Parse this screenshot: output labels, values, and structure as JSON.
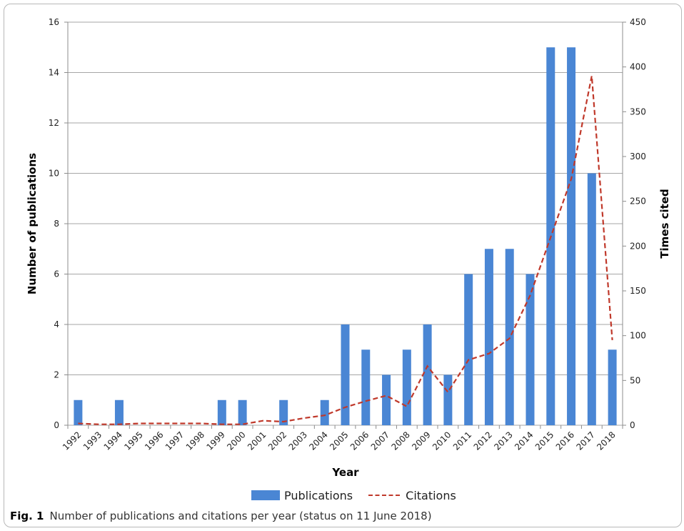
{
  "chart_data": {
    "type": "bar",
    "categories": [
      "1992",
      "1993",
      "1994",
      "1995",
      "1996",
      "1997",
      "1998",
      "1999",
      "2000",
      "2001",
      "2002",
      "2003",
      "2004",
      "2005",
      "2006",
      "2007",
      "2008",
      "2009",
      "2010",
      "2011",
      "2012",
      "2013",
      "2014",
      "2015",
      "2016",
      "2017",
      "2018"
    ],
    "series": [
      {
        "name": "Publications",
        "type": "bar",
        "axis": "left",
        "color": "#4a86d4",
        "values": [
          1,
          0,
          1,
          0,
          0,
          0,
          0,
          1,
          1,
          0,
          1,
          0,
          1,
          4,
          3,
          2,
          3,
          4,
          2,
          6,
          7,
          7,
          6,
          15,
          15,
          10,
          3
        ]
      },
      {
        "name": "Citations",
        "type": "line",
        "style": "dashed",
        "axis": "right",
        "color": "#c0392b",
        "values": [
          2,
          1,
          1,
          2,
          2,
          2,
          2,
          1,
          1,
          5,
          4,
          8,
          11,
          20,
          27,
          33,
          21,
          66,
          37,
          73,
          80,
          97,
          145,
          210,
          275,
          390,
          95
        ]
      }
    ],
    "xlabel": "Year",
    "ylabel": "Number of publications",
    "y2label": "Times cited",
    "ylim": [
      0,
      16
    ],
    "y2lim": [
      0,
      450
    ],
    "yticks": [
      "0",
      "2",
      "4",
      "6",
      "8",
      "10",
      "12",
      "14",
      "16"
    ],
    "y2ticks": [
      "0",
      "50",
      "100",
      "150",
      "200",
      "250",
      "300",
      "350",
      "400",
      "450"
    ],
    "grid": true,
    "legend_position": "bottom"
  },
  "legend": {
    "publications": "Publications",
    "citations": "Citations"
  },
  "caption": {
    "label": "Fig. 1",
    "text": "Number of publications and citations per year (status on 11 June 2018)"
  }
}
